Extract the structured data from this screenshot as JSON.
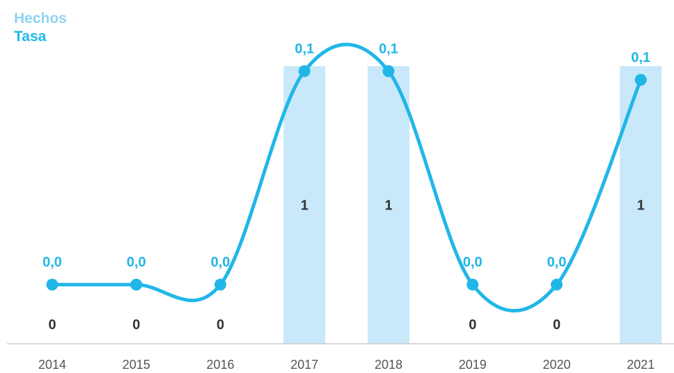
{
  "legend": {
    "hechos": "Hechos",
    "tasa": "Tasa"
  },
  "colors": {
    "bar": "#c9e9fa",
    "line": "#21b6e8",
    "legend_hechos": "#8fd3f2",
    "axis": "#cccccc",
    "bar_label": "#333333",
    "tick_label": "#555555"
  },
  "chart_data": {
    "type": "bar",
    "categories": [
      "2014",
      "2015",
      "2016",
      "2017",
      "2018",
      "2019",
      "2020",
      "2021"
    ],
    "series": [
      {
        "name": "Hechos",
        "type": "bar",
        "values": [
          0,
          0,
          0,
          1,
          1,
          0,
          0,
          1
        ],
        "labels": [
          "0",
          "0",
          "0",
          "1",
          "1",
          "0",
          "0",
          "1"
        ]
      },
      {
        "name": "Tasa",
        "type": "line",
        "values": [
          0.0,
          0.0,
          0.0,
          0.098,
          0.098,
          0.0,
          0.0,
          0.094
        ],
        "labels": [
          "0,0",
          "0,0",
          "0,0",
          "0,1",
          "0,1",
          "0,0",
          "0,0",
          "0,1"
        ]
      }
    ],
    "bar_axis": {
      "ylim": [
        0,
        1
      ]
    },
    "line_axis": {
      "ylim": [
        0,
        0.1
      ]
    },
    "legend_position": "top-left",
    "grid": false
  }
}
